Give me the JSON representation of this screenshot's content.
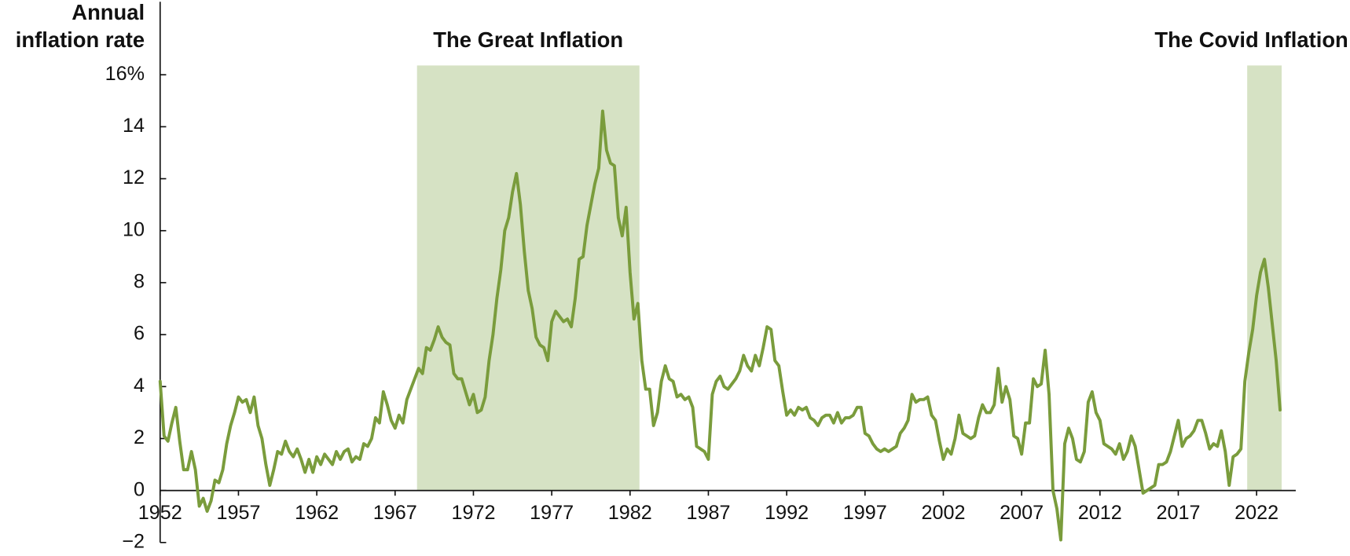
{
  "chart_data": {
    "type": "line",
    "y_label": [
      "Annual",
      "inflation rate"
    ],
    "color": "#7a9c3c",
    "shade_color": "#d6e2c4",
    "grid": false,
    "regions": [
      {
        "label": "The Great Inflation",
        "start": 1968.4,
        "end": 1982.6
      },
      {
        "label": "The Covid Inflation",
        "start": 2021.4,
        "end": 2023.6
      }
    ],
    "xlim": [
      1952,
      2024.5
    ],
    "xticks": [
      1952,
      1957,
      1962,
      1967,
      1972,
      1977,
      1982,
      1987,
      1992,
      1997,
      2002,
      2007,
      2012,
      2017,
      2022
    ],
    "ylim": [
      -2,
      16
    ],
    "yticks": [
      {
        "value": -2,
        "label": "−2"
      },
      0,
      2,
      4,
      6,
      8,
      10,
      12,
      14,
      {
        "value": 16,
        "label": "16%"
      }
    ],
    "x": [
      1952,
      1952.25,
      1952.5,
      1952.75,
      1953,
      1953.25,
      1953.5,
      1953.75,
      1954,
      1954.25,
      1954.5,
      1954.75,
      1955,
      1955.25,
      1955.5,
      1955.75,
      1956,
      1956.25,
      1956.5,
      1956.75,
      1957,
      1957.25,
      1957.5,
      1957.75,
      1958,
      1958.25,
      1958.5,
      1958.75,
      1959,
      1959.25,
      1959.5,
      1959.75,
      1960,
      1960.25,
      1960.5,
      1960.75,
      1961,
      1961.25,
      1961.5,
      1961.75,
      1962,
      1962.25,
      1962.5,
      1962.75,
      1963,
      1963.25,
      1963.5,
      1963.75,
      1964,
      1964.25,
      1964.5,
      1964.75,
      1965,
      1965.25,
      1965.5,
      1965.75,
      1966,
      1966.25,
      1966.5,
      1966.75,
      1967,
      1967.25,
      1967.5,
      1967.75,
      1968,
      1968.25,
      1968.5,
      1968.75,
      1969,
      1969.25,
      1969.5,
      1969.75,
      1970,
      1970.25,
      1970.5,
      1970.75,
      1971,
      1971.25,
      1971.5,
      1971.75,
      1972,
      1972.25,
      1972.5,
      1972.75,
      1973,
      1973.25,
      1973.5,
      1973.75,
      1974,
      1974.25,
      1974.5,
      1974.75,
      1975,
      1975.25,
      1975.5,
      1975.75,
      1976,
      1976.25,
      1976.5,
      1976.75,
      1977,
      1977.25,
      1977.5,
      1977.75,
      1978,
      1978.25,
      1978.5,
      1978.75,
      1979,
      1979.25,
      1979.5,
      1979.75,
      1980,
      1980.25,
      1980.5,
      1980.75,
      1981,
      1981.25,
      1981.5,
      1981.75,
      1982,
      1982.25,
      1982.5,
      1982.75,
      1983,
      1983.25,
      1983.5,
      1983.75,
      1984,
      1984.25,
      1984.5,
      1984.75,
      1985,
      1985.25,
      1985.5,
      1985.75,
      1986,
      1986.25,
      1986.5,
      1986.75,
      1987,
      1987.25,
      1987.5,
      1987.75,
      1988,
      1988.25,
      1988.5,
      1988.75,
      1989,
      1989.25,
      1989.5,
      1989.75,
      1990,
      1990.25,
      1990.5,
      1990.75,
      1991,
      1991.25,
      1991.5,
      1991.75,
      1992,
      1992.25,
      1992.5,
      1992.75,
      1993,
      1993.25,
      1993.5,
      1993.75,
      1994,
      1994.25,
      1994.5,
      1994.75,
      1995,
      1995.25,
      1995.5,
      1995.75,
      1996,
      1996.25,
      1996.5,
      1996.75,
      1997,
      1997.25,
      1997.5,
      1997.75,
      1998,
      1998.25,
      1998.5,
      1998.75,
      1999,
      1999.25,
      1999.5,
      1999.75,
      2000,
      2000.25,
      2000.5,
      2000.75,
      2001,
      2001.25,
      2001.5,
      2001.75,
      2002,
      2002.25,
      2002.5,
      2002.75,
      2003,
      2003.25,
      2003.5,
      2003.75,
      2004,
      2004.25,
      2004.5,
      2004.75,
      2005,
      2005.25,
      2005.5,
      2005.75,
      2006,
      2006.25,
      2006.5,
      2006.75,
      2007,
      2007.25,
      2007.5,
      2007.75,
      2008,
      2008.25,
      2008.5,
      2008.75,
      2009,
      2009.25,
      2009.5,
      2009.75,
      2010,
      2010.25,
      2010.5,
      2010.75,
      2011,
      2011.25,
      2011.5,
      2011.75,
      2012,
      2012.25,
      2012.5,
      2012.75,
      2013,
      2013.25,
      2013.5,
      2013.75,
      2014,
      2014.25,
      2014.5,
      2014.75,
      2015,
      2015.25,
      2015.5,
      2015.75,
      2016,
      2016.25,
      2016.5,
      2016.75,
      2017,
      2017.25,
      2017.5,
      2017.75,
      2018,
      2018.25,
      2018.5,
      2018.75,
      2019,
      2019.25,
      2019.5,
      2019.75,
      2020,
      2020.25,
      2020.5,
      2020.75,
      2021,
      2021.25,
      2021.5,
      2021.75,
      2022,
      2022.25,
      2022.5,
      2022.75,
      2023,
      2023.25,
      2023.5
    ],
    "values": [
      4.2,
      2.1,
      1.9,
      2.6,
      3.2,
      1.9,
      0.8,
      0.8,
      1.5,
      0.8,
      -0.6,
      -0.3,
      -0.8,
      -0.4,
      0.4,
      0.3,
      0.8,
      1.8,
      2.5,
      3.0,
      3.6,
      3.4,
      3.5,
      3.0,
      3.6,
      2.5,
      2.0,
      1.0,
      0.2,
      0.8,
      1.5,
      1.4,
      1.9,
      1.5,
      1.3,
      1.6,
      1.2,
      0.7,
      1.2,
      0.7,
      1.3,
      1.0,
      1.4,
      1.2,
      1.0,
      1.5,
      1.2,
      1.5,
      1.6,
      1.1,
      1.3,
      1.2,
      1.8,
      1.7,
      2.0,
      2.8,
      2.6,
      3.8,
      3.3,
      2.7,
      2.4,
      2.9,
      2.6,
      3.5,
      3.9,
      4.3,
      4.7,
      4.5,
      5.5,
      5.4,
      5.8,
      6.3,
      5.9,
      5.7,
      5.6,
      4.5,
      4.3,
      4.3,
      3.8,
      3.3,
      3.7,
      3.0,
      3.1,
      3.6,
      5.0,
      6.0,
      7.4,
      8.5,
      10.0,
      10.5,
      11.5,
      12.2,
      11.0,
      9.2,
      7.7,
      7.0,
      5.9,
      5.6,
      5.5,
      5.0,
      6.5,
      6.9,
      6.7,
      6.5,
      6.6,
      6.3,
      7.4,
      8.9,
      9.0,
      10.2,
      11.0,
      11.8,
      12.4,
      14.6,
      13.1,
      12.6,
      12.5,
      10.5,
      9.8,
      10.9,
      8.4,
      6.6,
      7.2,
      5.0,
      3.9,
      3.9,
      2.5,
      3.0,
      4.2,
      4.8,
      4.3,
      4.2,
      3.6,
      3.7,
      3.5,
      3.6,
      3.2,
      1.7,
      1.6,
      1.5,
      1.2,
      3.7,
      4.2,
      4.4,
      4.0,
      3.9,
      4.1,
      4.3,
      4.6,
      5.2,
      4.8,
      4.6,
      5.2,
      4.8,
      5.5,
      6.3,
      6.2,
      5.0,
      4.8,
      3.8,
      2.9,
      3.1,
      2.9,
      3.2,
      3.1,
      3.2,
      2.8,
      2.7,
      2.5,
      2.8,
      2.9,
      2.9,
      2.6,
      3.0,
      2.6,
      2.8,
      2.8,
      2.9,
      3.2,
      3.2,
      2.2,
      2.1,
      1.8,
      1.6,
      1.5,
      1.6,
      1.5,
      1.6,
      1.7,
      2.2,
      2.4,
      2.7,
      3.7,
      3.4,
      3.5,
      3.5,
      3.6,
      2.9,
      2.7,
      1.9,
      1.2,
      1.6,
      1.4,
      2.0,
      2.9,
      2.2,
      2.1,
      2.0,
      2.1,
      2.8,
      3.3,
      3.0,
      3.0,
      3.3,
      4.7,
      3.4,
      4.0,
      3.5,
      2.1,
      2.0,
      1.4,
      2.6,
      2.6,
      4.3,
      4.0,
      4.1,
      5.4,
      3.7,
      0.0,
      -0.7,
      -1.9,
      1.8,
      2.4,
      2.0,
      1.2,
      1.1,
      1.5,
      3.4,
      3.8,
      3.0,
      2.7,
      1.8,
      1.7,
      1.6,
      1.4,
      1.8,
      1.2,
      1.5,
      2.1,
      1.7,
      0.8,
      -0.1,
      0.0,
      0.1,
      0.2,
      1.0,
      1.0,
      1.1,
      1.5,
      2.1,
      2.7,
      1.7,
      2.0,
      2.1,
      2.3,
      2.7,
      2.7,
      2.2,
      1.6,
      1.8,
      1.7,
      2.3,
      1.5,
      0.2,
      1.3,
      1.4,
      1.6,
      4.2,
      5.3,
      6.2,
      7.5,
      8.4,
      8.9,
      7.8,
      6.4,
      5.0,
      3.1
    ]
  }
}
